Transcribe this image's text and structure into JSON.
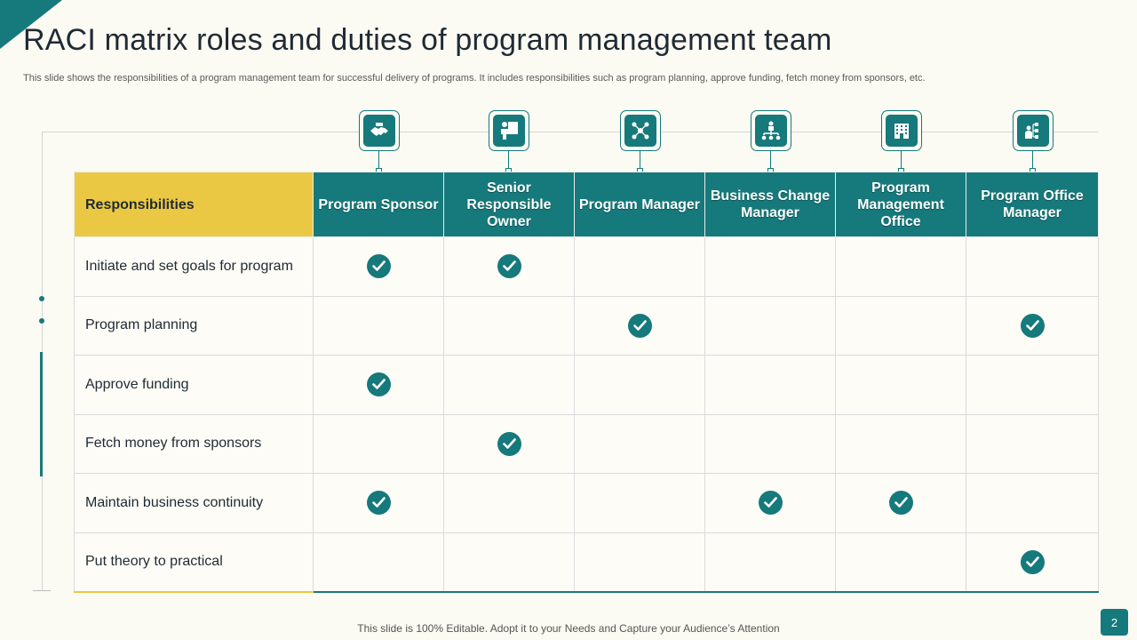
{
  "slide": {
    "title": "RACI matrix roles and duties of program management team",
    "subtitle": "This slide shows the responsibilities of a program management team for successful delivery of programs. It includes responsibilities such as program planning, approve funding, fetch money from sponsors, etc.",
    "footer": "This slide is 100% Editable. Adopt it to your Needs and Capture your Audience’s Attention",
    "page_number": "2",
    "accent_color": "#16797b",
    "highlight_color": "#ebc843"
  },
  "table": {
    "responsibilities_header": "Responsibilities",
    "roles": [
      {
        "label": "Program Sponsor",
        "icon": "handshake-icon"
      },
      {
        "label": "Senior Responsible Owner",
        "icon": "presenter-icon"
      },
      {
        "label": "Program Manager",
        "icon": "team-network-icon"
      },
      {
        "label": "Business Change Manager",
        "icon": "org-chart-icon"
      },
      {
        "label": "Program Management Office",
        "icon": "office-building-icon"
      },
      {
        "label": "Program Office Manager",
        "icon": "manager-workflow-icon"
      }
    ],
    "rows": [
      {
        "task": "Initiate and set goals for program",
        "checks": [
          true,
          true,
          false,
          false,
          false,
          false
        ]
      },
      {
        "task": "Program planning",
        "checks": [
          false,
          false,
          true,
          false,
          false,
          true
        ]
      },
      {
        "task": "Approve funding",
        "checks": [
          true,
          false,
          false,
          false,
          false,
          false
        ]
      },
      {
        "task": "Fetch money from sponsors",
        "checks": [
          false,
          true,
          false,
          false,
          false,
          false
        ]
      },
      {
        "task": "Maintain business continuity",
        "checks": [
          true,
          false,
          false,
          true,
          true,
          false
        ]
      },
      {
        "task": "Put theory  to practical",
        "checks": [
          false,
          false,
          false,
          false,
          false,
          true
        ]
      }
    ]
  }
}
